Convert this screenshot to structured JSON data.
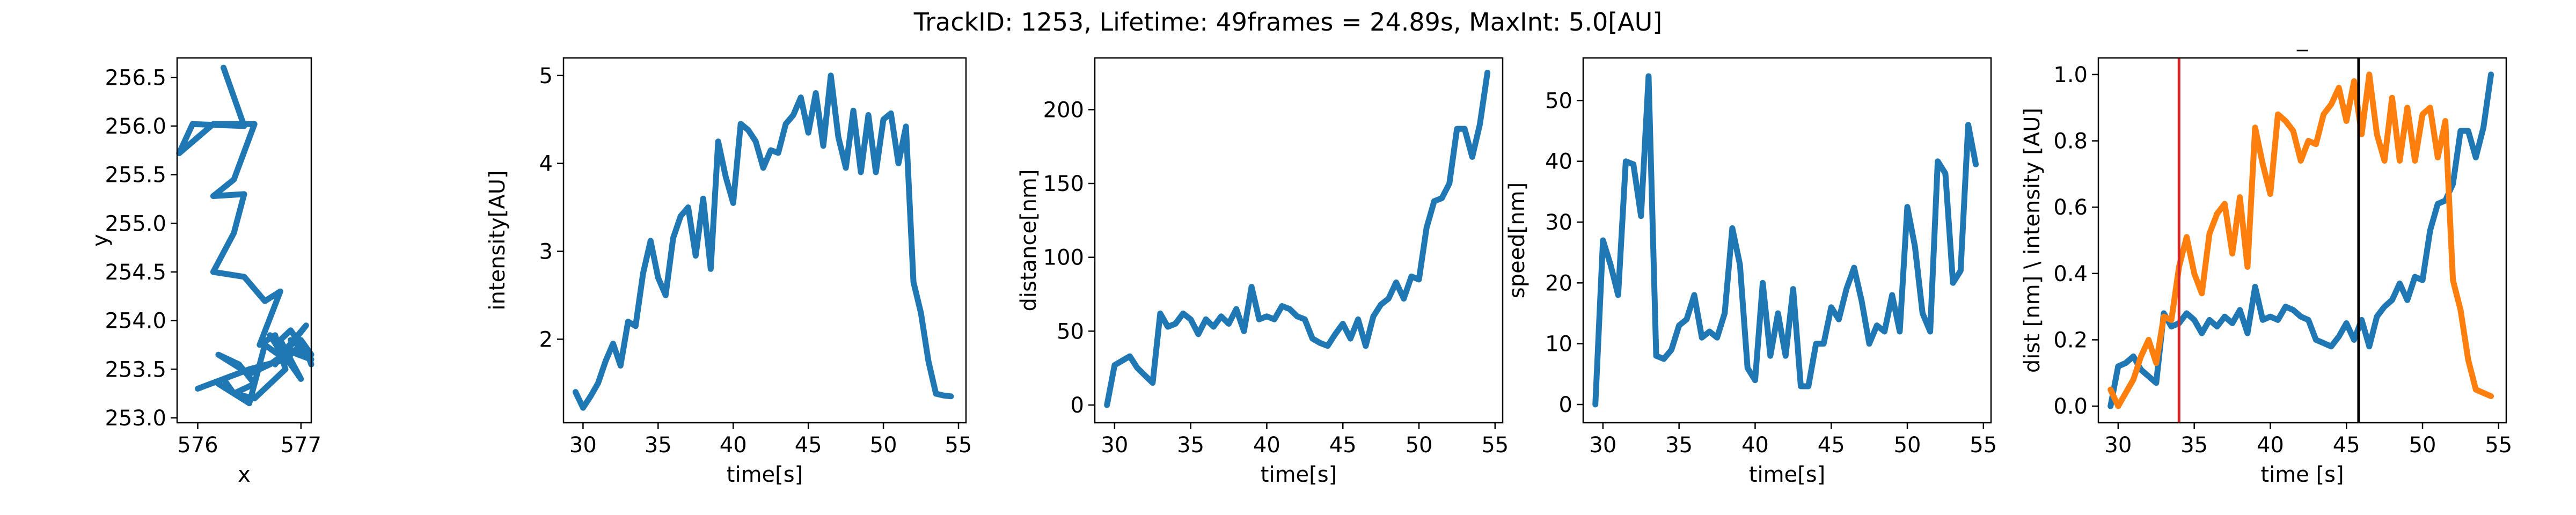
{
  "figure": {
    "title": "TrackID: 1253, Lifetime: 49frames = 24.89s, MaxInt: 5.0[AU]"
  },
  "colors": {
    "blue": "#1f77b4",
    "orange": "#ff7f0e",
    "red": "#d62728",
    "black": "#000000"
  },
  "chart_data": [
    {
      "type": "line",
      "xlabel": "x",
      "ylabel": "y",
      "xlim": [
        575.8,
        577.1
      ],
      "ylim": [
        252.95,
        256.7
      ],
      "xticks": [
        576,
        577
      ],
      "yticks": [
        253.0,
        253.5,
        254.0,
        254.5,
        255.0,
        255.5,
        256.0,
        256.5
      ],
      "series": [
        {
          "color": "#1f77b4",
          "x": [
            576.25,
            576.45,
            575.95,
            575.82,
            576.15,
            576.55,
            576.35,
            576.15,
            576.45,
            576.35,
            576.15,
            576.45,
            576.65,
            576.8,
            576.6,
            576.75,
            576.85,
            576.55,
            576.35,
            576.2,
            576.5,
            576.65,
            576.85,
            576.7,
            577.0,
            576.8,
            576.9,
            577.1,
            576.85,
            577.05,
            576.75,
            576.9,
            577.0,
            577.1,
            576.9,
            576.7,
            576.5,
            576.2,
            576.4,
            576.55,
            576.35,
            576.25,
            576.0,
            576.5,
            576.85,
            577.0,
            576.9,
            577.05,
            577.1
          ],
          "y": [
            256.6,
            256.0,
            256.02,
            255.72,
            256.02,
            256.02,
            255.45,
            255.28,
            255.3,
            254.9,
            254.5,
            254.45,
            254.2,
            254.3,
            253.75,
            253.85,
            253.5,
            253.2,
            253.25,
            253.35,
            253.15,
            253.75,
            253.6,
            253.85,
            253.4,
            253.8,
            253.9,
            253.6,
            253.7,
            253.95,
            253.55,
            253.75,
            253.8,
            253.65,
            253.7,
            253.55,
            253.45,
            253.65,
            253.55,
            253.35,
            253.25,
            253.4,
            253.3,
            253.5,
            253.6,
            253.75,
            253.8,
            253.7,
            253.55
          ]
        }
      ]
    },
    {
      "type": "line",
      "xlabel": "time[s]",
      "ylabel": "intensity[AU]",
      "xlim": [
        28.7,
        55.5
      ],
      "ylim": [
        1.05,
        5.2
      ],
      "xticks": [
        30,
        35,
        40,
        45,
        50,
        55
      ],
      "yticks": [
        2,
        3,
        4,
        5
      ],
      "series": [
        {
          "color": "#1f77b4",
          "x": [
            29.5,
            30.0,
            30.5,
            31.0,
            31.5,
            32.0,
            32.5,
            33.0,
            33.5,
            34.0,
            34.5,
            35.0,
            35.5,
            36.0,
            36.5,
            37.0,
            37.5,
            38.0,
            38.5,
            39.0,
            39.5,
            40.0,
            40.5,
            41.0,
            41.5,
            42.0,
            42.5,
            43.0,
            43.5,
            44.0,
            44.5,
            45.0,
            45.5,
            46.0,
            46.5,
            47.0,
            47.5,
            48.0,
            48.5,
            49.0,
            49.5,
            50.0,
            50.5,
            51.0,
            51.5,
            52.0,
            52.5,
            53.0,
            53.5,
            54.0,
            54.5
          ],
          "y": [
            1.4,
            1.22,
            1.35,
            1.5,
            1.75,
            1.95,
            1.7,
            2.2,
            2.15,
            2.75,
            3.12,
            2.7,
            2.5,
            3.15,
            3.4,
            3.5,
            2.95,
            3.6,
            2.8,
            4.25,
            3.85,
            3.55,
            4.45,
            4.38,
            4.25,
            3.95,
            4.15,
            4.12,
            4.45,
            4.55,
            4.75,
            4.35,
            4.8,
            4.2,
            5.0,
            4.3,
            3.95,
            4.6,
            3.9,
            4.55,
            3.9,
            4.5,
            4.57,
            4.0,
            4.42,
            2.65,
            2.3,
            1.75,
            1.38,
            1.36,
            1.35
          ]
        }
      ]
    },
    {
      "type": "line",
      "xlabel": "time[s]",
      "ylabel": "distance[nm]",
      "xlim": [
        28.7,
        55.5
      ],
      "ylim": [
        -12,
        235
      ],
      "xticks": [
        30,
        35,
        40,
        45,
        50,
        55
      ],
      "yticks": [
        0,
        50,
        100,
        150,
        200
      ],
      "series": [
        {
          "color": "#1f77b4",
          "x": [
            29.5,
            30.0,
            30.5,
            31.0,
            31.5,
            32.0,
            32.5,
            33.0,
            33.5,
            34.0,
            34.5,
            35.0,
            35.5,
            36.0,
            36.5,
            37.0,
            37.5,
            38.0,
            38.5,
            39.0,
            39.5,
            40.0,
            40.5,
            41.0,
            41.5,
            42.0,
            42.5,
            43.0,
            43.5,
            44.0,
            44.5,
            45.0,
            45.5,
            46.0,
            46.5,
            47.0,
            47.5,
            48.0,
            48.5,
            49.0,
            49.5,
            50.0,
            50.5,
            51.0,
            51.5,
            52.0,
            52.5,
            53.0,
            53.5,
            54.0,
            54.5
          ],
          "y": [
            0,
            27,
            30,
            33,
            25,
            20,
            15,
            62,
            53,
            55,
            62,
            58,
            48,
            58,
            53,
            60,
            55,
            65,
            50,
            80,
            58,
            60,
            58,
            67,
            65,
            60,
            58,
            45,
            42,
            40,
            48,
            55,
            45,
            58,
            40,
            60,
            68,
            72,
            83,
            72,
            87,
            85,
            120,
            138,
            140,
            150,
            187,
            187,
            168,
            190,
            225
          ]
        }
      ]
    },
    {
      "type": "line",
      "xlabel": "time[s]",
      "ylabel": "speed[nm]",
      "xlim": [
        28.7,
        55.5
      ],
      "ylim": [
        -3,
        57
      ],
      "xticks": [
        30,
        35,
        40,
        45,
        50,
        55
      ],
      "yticks": [
        0,
        10,
        20,
        30,
        40,
        50
      ],
      "series": [
        {
          "color": "#1f77b4",
          "x": [
            29.5,
            30.0,
            30.5,
            31.0,
            31.5,
            32.0,
            32.5,
            33.0,
            33.5,
            34.0,
            34.5,
            35.0,
            35.5,
            36.0,
            36.5,
            37.0,
            37.5,
            38.0,
            38.5,
            39.0,
            39.5,
            40.0,
            40.5,
            41.0,
            41.5,
            42.0,
            42.5,
            43.0,
            43.5,
            44.0,
            44.5,
            45.0,
            45.5,
            46.0,
            46.5,
            47.0,
            47.5,
            48.0,
            48.5,
            49.0,
            49.5,
            50.0,
            50.5,
            51.0,
            51.5,
            52.0,
            52.5,
            53.0,
            53.5,
            54.0,
            54.5
          ],
          "y": [
            0,
            27,
            23,
            18,
            40,
            39.5,
            31,
            54,
            8,
            7.5,
            9,
            13,
            14,
            18,
            11,
            12,
            11,
            15,
            29,
            23,
            6,
            4,
            20,
            8,
            15,
            8,
            19,
            3,
            3,
            10,
            10,
            16,
            14,
            19,
            22.5,
            17,
            10,
            13,
            12,
            18,
            12,
            32.5,
            26,
            15,
            12,
            40,
            38,
            20,
            22,
            46,
            39.5
          ]
        }
      ]
    },
    {
      "type": "line",
      "title": "_",
      "xlabel": "time [s]",
      "ylabel": "dist [nm] \\ intensity [AU]",
      "xlim": [
        28.7,
        55.5
      ],
      "ylim": [
        -0.05,
        1.05
      ],
      "xticks": [
        30,
        35,
        40,
        45,
        50,
        55
      ],
      "yticks": [
        0.0,
        0.2,
        0.4,
        0.6,
        0.8,
        1.0
      ],
      "vlines": [
        {
          "x": 34.0,
          "color": "#d62728"
        },
        {
          "x": 45.8,
          "color": "#000000"
        }
      ],
      "series": [
        {
          "color": "#1f77b4",
          "x": [
            29.5,
            30.0,
            30.5,
            31.0,
            31.5,
            32.0,
            32.5,
            33.0,
            33.5,
            34.0,
            34.5,
            35.0,
            35.5,
            36.0,
            36.5,
            37.0,
            37.5,
            38.0,
            38.5,
            39.0,
            39.5,
            40.0,
            40.5,
            41.0,
            41.5,
            42.0,
            42.5,
            43.0,
            43.5,
            44.0,
            44.5,
            45.0,
            45.5,
            46.0,
            46.5,
            47.0,
            47.5,
            48.0,
            48.5,
            49.0,
            49.5,
            50.0,
            50.5,
            51.0,
            51.5,
            52.0,
            52.5,
            53.0,
            53.5,
            54.0,
            54.5
          ],
          "y": [
            0.0,
            0.12,
            0.13,
            0.15,
            0.11,
            0.09,
            0.07,
            0.28,
            0.24,
            0.25,
            0.28,
            0.26,
            0.22,
            0.26,
            0.24,
            0.27,
            0.25,
            0.29,
            0.22,
            0.36,
            0.26,
            0.27,
            0.26,
            0.3,
            0.29,
            0.27,
            0.26,
            0.2,
            0.19,
            0.18,
            0.21,
            0.25,
            0.2,
            0.26,
            0.18,
            0.27,
            0.3,
            0.32,
            0.37,
            0.32,
            0.39,
            0.38,
            0.53,
            0.61,
            0.62,
            0.67,
            0.83,
            0.83,
            0.75,
            0.84,
            1.0
          ]
        },
        {
          "color": "#ff7f0e",
          "x": [
            29.5,
            30.0,
            30.5,
            31.0,
            31.5,
            32.0,
            32.5,
            33.0,
            33.5,
            34.0,
            34.5,
            35.0,
            35.5,
            36.0,
            36.5,
            37.0,
            37.5,
            38.0,
            38.5,
            39.0,
            39.5,
            40.0,
            40.5,
            41.0,
            41.5,
            42.0,
            42.5,
            43.0,
            43.5,
            44.0,
            44.5,
            45.0,
            45.5,
            46.0,
            46.5,
            47.0,
            47.5,
            48.0,
            48.5,
            49.0,
            49.5,
            50.0,
            50.5,
            51.0,
            51.5,
            52.0,
            52.5,
            53.0,
            53.5,
            54.0,
            54.5
          ],
          "y": [
            0.05,
            0.0,
            0.04,
            0.08,
            0.15,
            0.2,
            0.13,
            0.27,
            0.26,
            0.42,
            0.51,
            0.4,
            0.34,
            0.52,
            0.58,
            0.61,
            0.46,
            0.63,
            0.42,
            0.84,
            0.73,
            0.64,
            0.88,
            0.86,
            0.83,
            0.74,
            0.8,
            0.79,
            0.88,
            0.91,
            0.96,
            0.86,
            0.98,
            0.82,
            1.0,
            0.82,
            0.74,
            0.93,
            0.74,
            0.9,
            0.74,
            0.88,
            0.9,
            0.75,
            0.86,
            0.38,
            0.29,
            0.14,
            0.05,
            0.04,
            0.03
          ]
        }
      ]
    }
  ]
}
